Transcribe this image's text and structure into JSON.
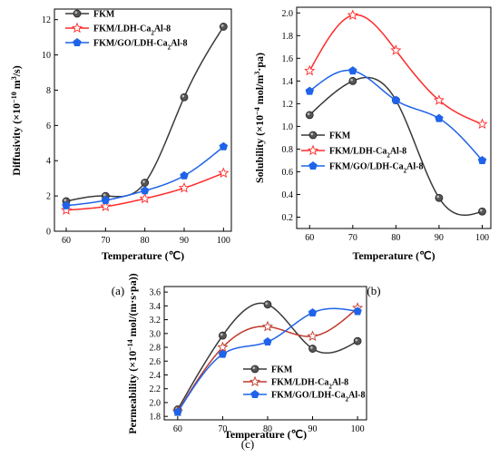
{
  "colors": {
    "FKM": "#3a3a3a",
    "FKM/LDH-Ca2Al-8": "#ff2a2a",
    "FKM/GO/LDH-Ca2Al-8": "#1f63ea",
    "panel_c_red": "#c0392b"
  },
  "chart_data": [
    {
      "panel": "(a)",
      "type": "line",
      "ylabel_main": "Diffusivity (×10",
      "ylabel_exp1": "−10",
      "ylabel_mid": " m",
      "ylabel_exp2": "3",
      "ylabel_end": "/s)",
      "xlabel": "Temperature (℃)",
      "x": [
        60,
        70,
        80,
        90,
        100
      ],
      "xlim": [
        57,
        102
      ],
      "ylim": [
        0,
        12.6
      ],
      "xticks": [
        60,
        70,
        80,
        90,
        100
      ],
      "yticks": [
        0,
        2,
        4,
        6,
        8,
        10,
        12
      ],
      "legend_position": "top-left",
      "series": [
        {
          "name": "FKM",
          "marker": "circle",
          "values": [
            1.7,
            2.0,
            2.75,
            7.6,
            11.6
          ]
        },
        {
          "name": "FKM/LDH-Ca2Al-8",
          "marker": "star",
          "values": [
            1.2,
            1.4,
            1.85,
            2.45,
            3.3
          ]
        },
        {
          "name": "FKM/GO/LDH-Ca2Al-8",
          "marker": "pentagon",
          "values": [
            1.45,
            1.75,
            2.3,
            3.15,
            4.8
          ]
        }
      ]
    },
    {
      "panel": "(b)",
      "type": "line",
      "ylabel_main": "Solubility (×10",
      "ylabel_exp1": "−4",
      "ylabel_mid": " mol/m",
      "ylabel_exp2": "3",
      "ylabel_end": "·pa)",
      "xlabel": "Temperature (℃)",
      "x": [
        60,
        70,
        80,
        90,
        100
      ],
      "xlim": [
        57,
        102
      ],
      "ylim": [
        0.1,
        2.05
      ],
      "xticks": [
        60,
        70,
        80,
        90,
        100
      ],
      "yticks": [
        0.2,
        0.4,
        0.6,
        0.8,
        1.0,
        1.2,
        1.4,
        1.6,
        1.8,
        2.0
      ],
      "ytick_labels": [
        "0.2",
        "0.4",
        "0.6",
        "0.8",
        "1.0",
        "1.2",
        "1.4",
        "1.6",
        "1.8",
        "2.0"
      ],
      "legend_position": "bottom-left",
      "series": [
        {
          "name": "FKM",
          "marker": "circle",
          "values": [
            1.1,
            1.4,
            1.23,
            0.37,
            0.25
          ]
        },
        {
          "name": "FKM/LDH-Ca2Al-8",
          "marker": "star",
          "values": [
            1.49,
            1.98,
            1.67,
            1.23,
            1.02
          ]
        },
        {
          "name": "FKM/GO/LDH-Ca2Al-8",
          "marker": "pentagon",
          "values": [
            1.31,
            1.49,
            1.23,
            1.07,
            0.7
          ]
        }
      ]
    },
    {
      "panel": "(c)",
      "type": "line",
      "ylabel_main": "Permeability (×10",
      "ylabel_exp1": "−14",
      "ylabel_mid": " mol/(m·s·pa))",
      "ylabel_exp2": "",
      "ylabel_end": "",
      "xlabel": "Temperature (℃)",
      "x": [
        60,
        70,
        80,
        90,
        100
      ],
      "xlim": [
        57,
        102
      ],
      "ylim": [
        1.75,
        3.68
      ],
      "xticks": [
        60,
        70,
        80,
        90,
        100
      ],
      "yticks": [
        1.8,
        2.0,
        2.2,
        2.4,
        2.6,
        2.8,
        3.0,
        3.2,
        3.4,
        3.6
      ],
      "ytick_labels": [
        "1.8",
        "2.0",
        "2.2",
        "2.4",
        "2.6",
        "2.8",
        "3.0",
        "3.2",
        "3.4",
        "3.6"
      ],
      "legend_position": "bottom-center",
      "series": [
        {
          "name": "FKM",
          "marker": "circle",
          "values": [
            1.9,
            2.97,
            3.42,
            2.78,
            2.89
          ]
        },
        {
          "name": "FKM/LDH-Ca2Al-8",
          "marker": "star",
          "values": [
            1.87,
            2.8,
            3.1,
            2.96,
            3.37
          ]
        },
        {
          "name": "FKM/GO/LDH-Ca2Al-8",
          "marker": "pentagon",
          "values": [
            1.86,
            2.7,
            2.88,
            3.3,
            3.32
          ]
        }
      ]
    }
  ]
}
